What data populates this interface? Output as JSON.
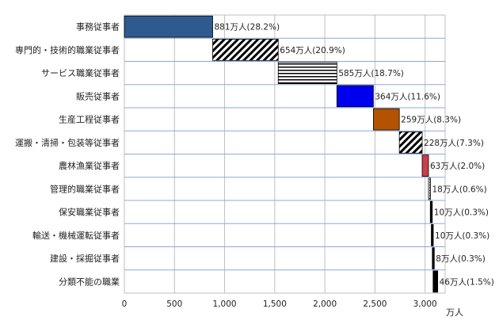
{
  "chart_data": {
    "type": "bar",
    "orientation": "horizontal",
    "style": "waterfall",
    "categories": [
      "事務従事者",
      "専門的・技術的職業従事者",
      "サービス職業従事者",
      "販売従事者",
      "生産工程従事者",
      "運搬・清掃・包装等従事者",
      "農林漁業従事者",
      "管理的職業従事者",
      "保安職業従事者",
      "輸送・機械運転従事者",
      "建設・採掘従事者",
      "分類不能の職業"
    ],
    "values": [
      881,
      654,
      585,
      364,
      259,
      228,
      63,
      18,
      10,
      10,
      8,
      46
    ],
    "value_labels": [
      "881万人(28.2%)",
      "654万人(20.9%)",
      "585万人(18.7%)",
      "364万人(11.6%)",
      "259万人(8.3%)",
      "228万人(7.3%)",
      "63万人(2.0%)",
      "18万人(0.6%)",
      "10万人(0.3%)",
      "10万人(0.3%)",
      "8万人(0.3%)",
      "46万人(1.5%)"
    ],
    "fills": [
      "#2f5a8f",
      "hatch-diag",
      "hatch-horiz",
      "#0000ee",
      "#b35200",
      "hatch-diag",
      "#c8414a",
      "dotted",
      "#000000",
      "#000000",
      "#000000",
      "#000000"
    ],
    "xlim": [
      0,
      3200
    ],
    "xticks": [
      0,
      500,
      1000,
      1500,
      2000,
      2500,
      3000
    ],
    "xtick_labels": [
      "0",
      "500",
      "1,000",
      "1,500",
      "2,000",
      "2,500",
      "3,000"
    ],
    "xunit": "万人",
    "grid": true
  }
}
